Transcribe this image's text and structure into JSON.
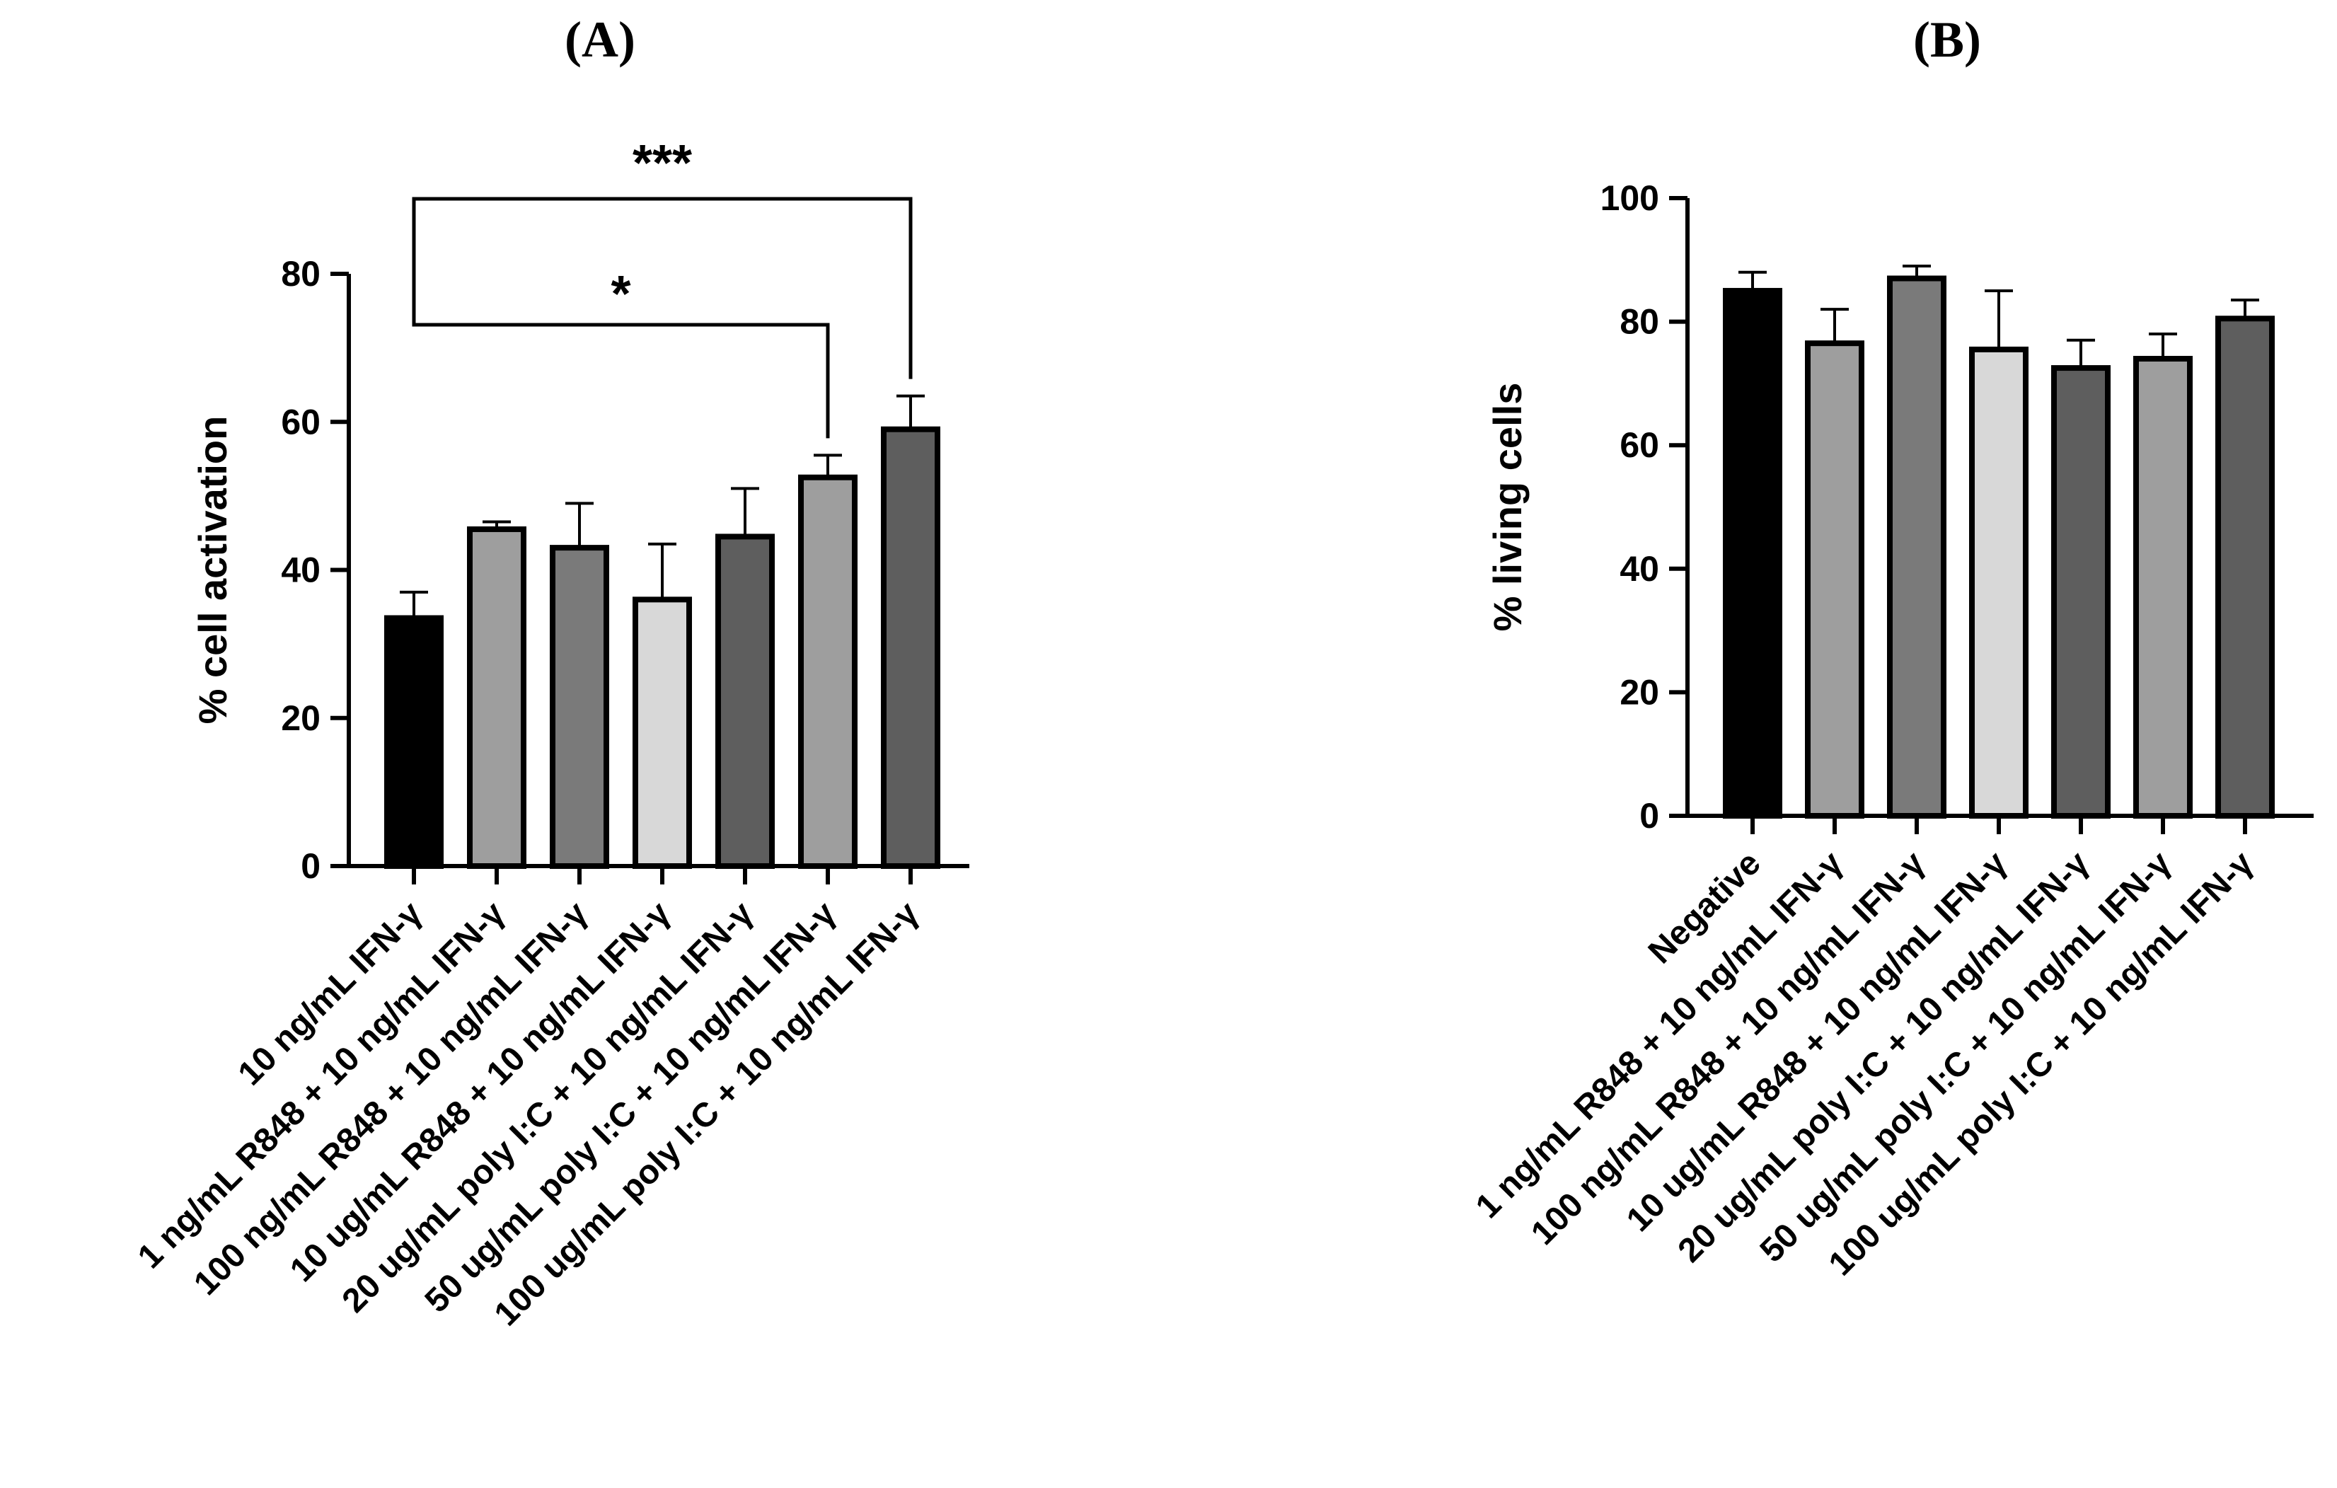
{
  "chart_data": [
    {
      "type": "bar",
      "panel_label": "(A)",
      "title": "",
      "xlabel": "",
      "ylabel": "% cell activation",
      "ylim": [
        0,
        80
      ],
      "yticks": [
        "0",
        "20",
        "40",
        "60",
        "80"
      ],
      "categories": [
        "10 ng/mL IFN-γ",
        "1 ng/mL R848 + 10 ng/mL IFN-γ",
        "100 ng/mL R848 + 10 ng/mL IFN-γ",
        "10 ug/mL R848 + 10 ng/mL IFN-γ",
        "20 ug/mL poly I:C + 10 ng/mL IFN-γ",
        "50 ug/mL poly I:C + 10 ng/mL IFN-γ",
        "100 ug/mL poly I:C + 10 ng/mL IFN-γ"
      ],
      "values": [
        33.5,
        45.5,
        43.0,
        36.0,
        44.5,
        52.5,
        59.0
      ],
      "errors": [
        3.5,
        1.0,
        6.0,
        7.5,
        6.5,
        3.0,
        4.5
      ],
      "bar_colors": [
        "#000000",
        "#9e9e9e",
        "#7a7a7a",
        "#d8d8d8",
        "#5e5e5e",
        "#9e9e9e",
        "#5e5e5e"
      ],
      "grid": false,
      "significance": [
        {
          "from": 0,
          "to": 6,
          "label": "***"
        },
        {
          "from": 0,
          "to": 5,
          "label": "*"
        }
      ]
    },
    {
      "type": "bar",
      "panel_label": "(B)",
      "title": "",
      "xlabel": "",
      "ylabel": "% living cells",
      "ylim": [
        0,
        100
      ],
      "yticks": [
        "0",
        "20",
        "40",
        "60",
        "80",
        "100"
      ],
      "categories": [
        "Negative",
        "1 ng/mL R848 + 10 ng/mL IFN-γ",
        "100 ng/mL R848 + 10 ng/mL IFN-γ",
        "10 ug/mL R848 + 10 ng/mL IFN-γ",
        "20 ug/mL poly I:C + 10 ng/mL IFN-γ",
        "50 ug/mL poly I:C + 10 ng/mL IFN-γ",
        "100 ug/mL poly I:C + 10 ng/mL IFN-γ"
      ],
      "values": [
        85,
        76.5,
        87,
        75.5,
        72.5,
        74,
        80.5
      ],
      "errors": [
        3,
        5.5,
        2,
        9.5,
        4.5,
        4,
        3
      ],
      "bar_colors": [
        "#000000",
        "#9e9e9e",
        "#7a7a7a",
        "#d8d8d8",
        "#5e5e5e",
        "#9e9e9e",
        "#5e5e5e"
      ],
      "grid": false,
      "significance": []
    }
  ]
}
